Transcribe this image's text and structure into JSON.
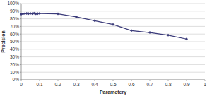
{
  "chart_data": {
    "type": "line",
    "x_label": "Parameterγ",
    "y_label": "Precision",
    "x": [
      0,
      0.01,
      0.02,
      0.03,
      0.04,
      0.05,
      0.06,
      0.07,
      0.08,
      0.09,
      0.1,
      0.2,
      0.3,
      0.4,
      0.5,
      0.6,
      0.7,
      0.8,
      0.9
    ],
    "series": [
      {
        "name": "Precision",
        "color": "#3b3b7a",
        "marker": "diamond",
        "line_style": "solid",
        "values": [
          86,
          86.5,
          86.8,
          87,
          86.7,
          87,
          86.9,
          87.2,
          86.5,
          86.8,
          87,
          86.5,
          82.5,
          77.5,
          72.5,
          64.5,
          62,
          58.5,
          53.5
        ]
      }
    ],
    "xlim": [
      0,
      1
    ],
    "xticks": [
      0,
      0.1,
      0.2,
      0.3,
      0.4,
      0.5,
      0.6,
      0.7,
      0.8,
      0.9,
      1
    ],
    "ylim": [
      0,
      100
    ],
    "yticks": [
      {
        "value": 0,
        "label": "0%"
      },
      {
        "value": 10,
        "label": "10%"
      },
      {
        "value": 20,
        "label": "20%"
      },
      {
        "value": 30,
        "label": "30%"
      },
      {
        "value": 40,
        "label": "40%"
      },
      {
        "value": 50,
        "label": "50%"
      },
      {
        "value": 60,
        "label": "60%"
      },
      {
        "value": 70,
        "label": "70%"
      },
      {
        "value": 80,
        "label": "80%"
      },
      {
        "value": 90,
        "label": "90%"
      },
      {
        "value": 100,
        "label": "100%"
      }
    ],
    "grid": true
  }
}
